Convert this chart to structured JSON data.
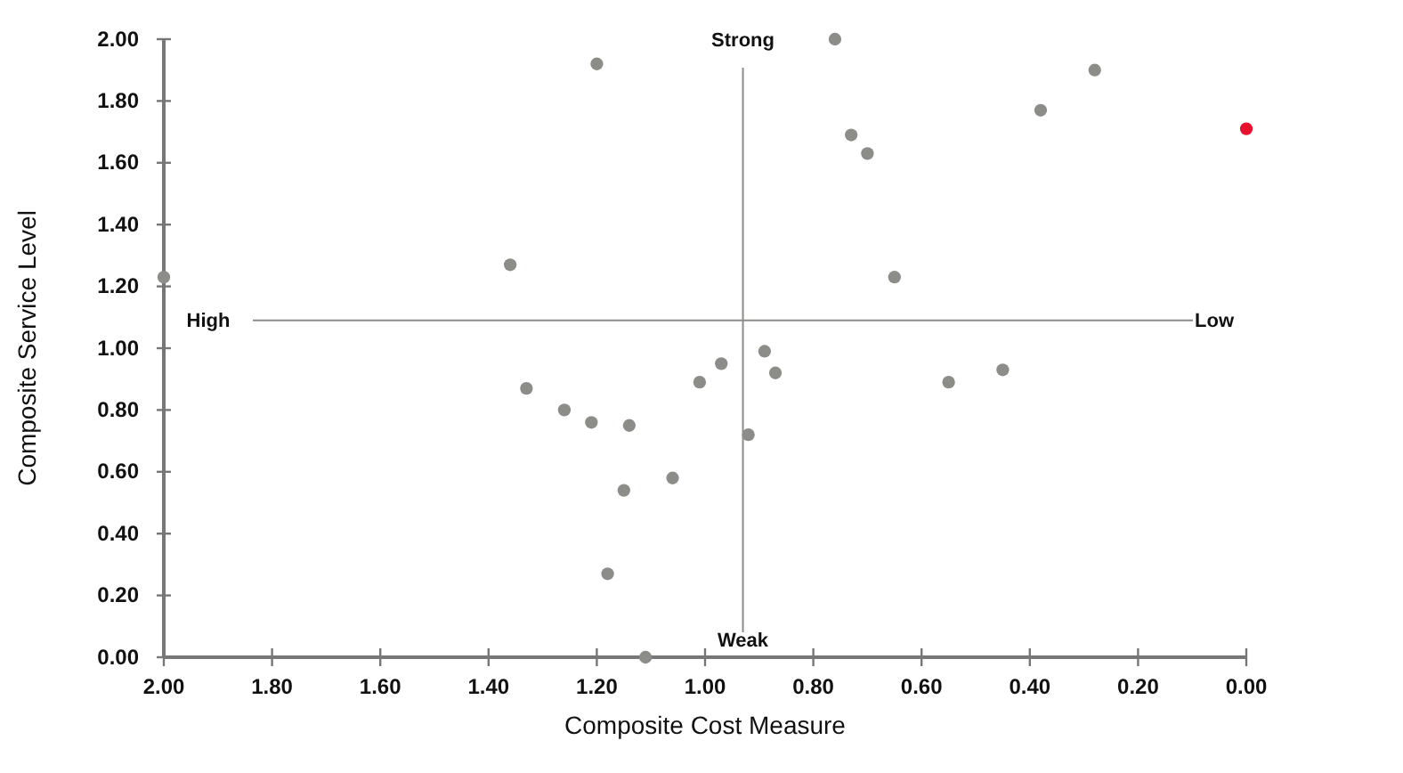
{
  "chart_data": {
    "type": "scatter",
    "xlabel": "Composite Cost Measure",
    "ylabel": "Composite Service Level",
    "xlim": [
      2,
      0
    ],
    "ylim": [
      0,
      2
    ],
    "xticks": [
      {
        "value": 2,
        "label": "2.00"
      },
      {
        "value": 1.8,
        "label": "1.80"
      },
      {
        "value": 1.6,
        "label": "1.60"
      },
      {
        "value": 1.4,
        "label": "1.40"
      },
      {
        "value": 1.2,
        "label": "1.20"
      },
      {
        "value": 1,
        "label": "1.00"
      },
      {
        "value": 0.8,
        "label": "0.80"
      },
      {
        "value": 0.6,
        "label": "0.60"
      },
      {
        "value": 0.4,
        "label": "0.40"
      },
      {
        "value": 0.2,
        "label": "0.20"
      },
      {
        "value": 0,
        "label": "0.00"
      }
    ],
    "yticks": [
      {
        "value": 0,
        "label": "0.00"
      },
      {
        "value": 0.2,
        "label": "0.20"
      },
      {
        "value": 0.4,
        "label": "0.40"
      },
      {
        "value": 0.6,
        "label": "0.60"
      },
      {
        "value": 0.8,
        "label": "0.80"
      },
      {
        "value": 1,
        "label": "1.00"
      },
      {
        "value": 1.2,
        "label": "1.20"
      },
      {
        "value": 1.4,
        "label": "1.40"
      },
      {
        "value": 1.6,
        "label": "1.60"
      },
      {
        "value": 1.8,
        "label": "1.80"
      },
      {
        "value": 2,
        "label": "2.00"
      }
    ],
    "grid": false,
    "marker": "circle",
    "series": [
      {
        "color": "#8c8c88",
        "x": [
          2.0,
          1.2,
          1.36,
          0.76,
          0.28,
          0.38,
          0.73,
          0.7,
          0.65,
          0.89,
          1.33,
          1.26,
          1.21,
          1.14,
          1.15,
          1.06,
          1.18,
          1.11,
          1.01,
          0.97,
          0.87,
          0.92,
          0.55,
          0.45
        ],
        "values": [
          1.23,
          1.92,
          1.27,
          2.0,
          1.9,
          1.77,
          1.69,
          1.63,
          1.23,
          0.99,
          0.87,
          0.8,
          0.76,
          0.75,
          0.54,
          0.58,
          0.27,
          0.0,
          0.89,
          0.95,
          0.92,
          0.72,
          0.89,
          0.93
        ]
      },
      {
        "color": "#e8112d",
        "x": [
          0.0
        ],
        "values": [
          1.71
        ]
      }
    ],
    "ref_lines": [
      {
        "axis": "y",
        "value": 1.09,
        "color": "#8c8c88"
      },
      {
        "axis": "x",
        "value": 0.93,
        "color": "#8c8c88"
      }
    ],
    "annotations": [
      "High",
      "Low",
      "Strong",
      "Weak"
    ]
  }
}
